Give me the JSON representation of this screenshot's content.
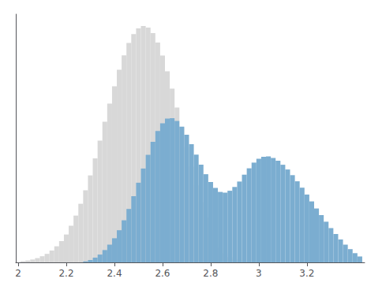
{
  "chart_data": {
    "type": "histogram",
    "xlim": [
      1.99,
      3.44
    ],
    "xticks": [
      2,
      2.2,
      2.4,
      2.6,
      2.8,
      3,
      3.2
    ],
    "ylim": [
      0,
      1.05
    ],
    "tick_labels": "x",
    "grid": false,
    "series": [
      {
        "color": "#d8d8d8",
        "bins": [
          2.01,
          2.03,
          2.05,
          2.07,
          2.09,
          2.11,
          2.13,
          2.15,
          2.17,
          2.19,
          2.21,
          2.23,
          2.25,
          2.27,
          2.29,
          2.31,
          2.33,
          2.35,
          2.37,
          2.39,
          2.41,
          2.43,
          2.45,
          2.47,
          2.49,
          2.51,
          2.53,
          2.55,
          2.57,
          2.59,
          2.61,
          2.63,
          2.65,
          2.67,
          2.69,
          2.71,
          2.73,
          2.75,
          2.77,
          2.79,
          2.81,
          2.83,
          2.85,
          2.87,
          2.89,
          2.91,
          2.93,
          2.95,
          2.97,
          2.99,
          3.01
        ],
        "values": [
          0.005,
          0.008,
          0.012,
          0.018,
          0.026,
          0.036,
          0.05,
          0.068,
          0.09,
          0.118,
          0.155,
          0.198,
          0.248,
          0.305,
          0.368,
          0.44,
          0.515,
          0.595,
          0.672,
          0.745,
          0.815,
          0.876,
          0.928,
          0.966,
          0.99,
          1.0,
          0.993,
          0.97,
          0.93,
          0.875,
          0.808,
          0.735,
          0.655,
          0.572,
          0.488,
          0.405,
          0.326,
          0.254,
          0.19,
          0.138,
          0.095,
          0.062,
          0.038,
          0.022,
          0.013,
          0.008,
          0.005,
          0.003,
          0.002,
          0.001
        ]
      },
      {
        "color": "#7badd0",
        "bins": [
          2.27,
          2.29,
          2.31,
          2.33,
          2.35,
          2.37,
          2.39,
          2.41,
          2.43,
          2.45,
          2.47,
          2.49,
          2.51,
          2.53,
          2.55,
          2.57,
          2.59,
          2.61,
          2.63,
          2.65,
          2.67,
          2.69,
          2.71,
          2.73,
          2.75,
          2.77,
          2.79,
          2.81,
          2.83,
          2.85,
          2.87,
          2.89,
          2.91,
          2.93,
          2.95,
          2.97,
          2.99,
          3.01,
          3.03,
          3.05,
          3.07,
          3.09,
          3.11,
          3.13,
          3.15,
          3.17,
          3.19,
          3.21,
          3.23,
          3.25,
          3.27,
          3.29,
          3.31,
          3.33,
          3.35,
          3.37,
          3.39,
          3.41,
          3.43
        ],
        "values": [
          0.004,
          0.01,
          0.02,
          0.033,
          0.052,
          0.075,
          0.102,
          0.136,
          0.178,
          0.226,
          0.28,
          0.337,
          0.397,
          0.455,
          0.51,
          0.556,
          0.588,
          0.608,
          0.61,
          0.598,
          0.574,
          0.54,
          0.5,
          0.456,
          0.413,
          0.373,
          0.34,
          0.315,
          0.298,
          0.295,
          0.303,
          0.319,
          0.342,
          0.371,
          0.398,
          0.422,
          0.438,
          0.447,
          0.448,
          0.442,
          0.43,
          0.413,
          0.393,
          0.369,
          0.343,
          0.316,
          0.287,
          0.258,
          0.228,
          0.2,
          0.172,
          0.145,
          0.12,
          0.097,
          0.075,
          0.056,
          0.039,
          0.025
        ]
      }
    ]
  }
}
